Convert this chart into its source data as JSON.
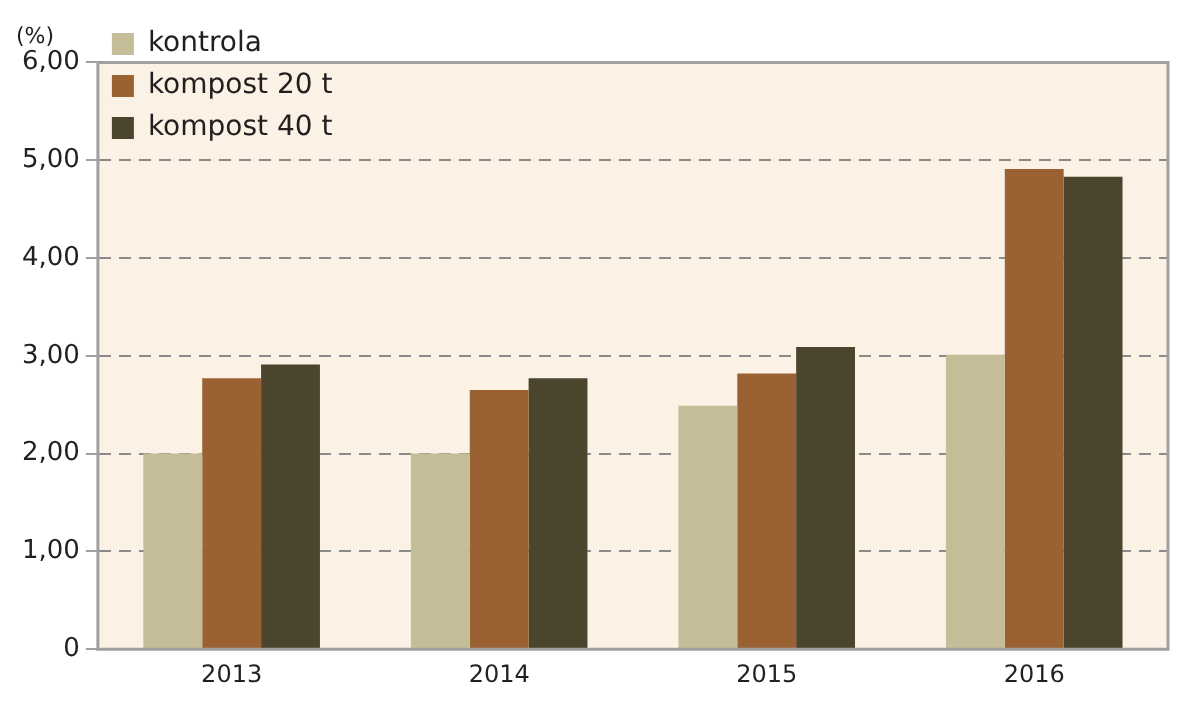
{
  "chart_data": {
    "type": "bar",
    "ylabel": "(%)",
    "categories": [
      "2013",
      "2014",
      "2015",
      "2016"
    ],
    "series": [
      {
        "name": "kontrola",
        "color": "#c5bd98",
        "values": [
          2.0,
          2.0,
          2.49,
          3.01
        ]
      },
      {
        "name": "kompost 20 t",
        "color": "#9a6233",
        "values": [
          2.77,
          2.65,
          2.82,
          4.91
        ]
      },
      {
        "name": "kompost 40 t",
        "color": "#4b452d",
        "values": [
          2.91,
          2.77,
          3.09,
          4.83
        ]
      }
    ],
    "ylim": [
      0,
      6
    ],
    "yticks": [
      0,
      {
        "value": 1,
        "label": "1,00"
      },
      {
        "value": 2,
        "label": "2,00"
      },
      {
        "value": 3,
        "label": "3,00"
      },
      {
        "value": 4,
        "label": "4,00"
      },
      {
        "value": 5,
        "label": "5,00"
      },
      {
        "value": 6,
        "label": "6,00"
      }
    ],
    "grid": "y",
    "legend": "top left",
    "line_style": "dashed"
  }
}
